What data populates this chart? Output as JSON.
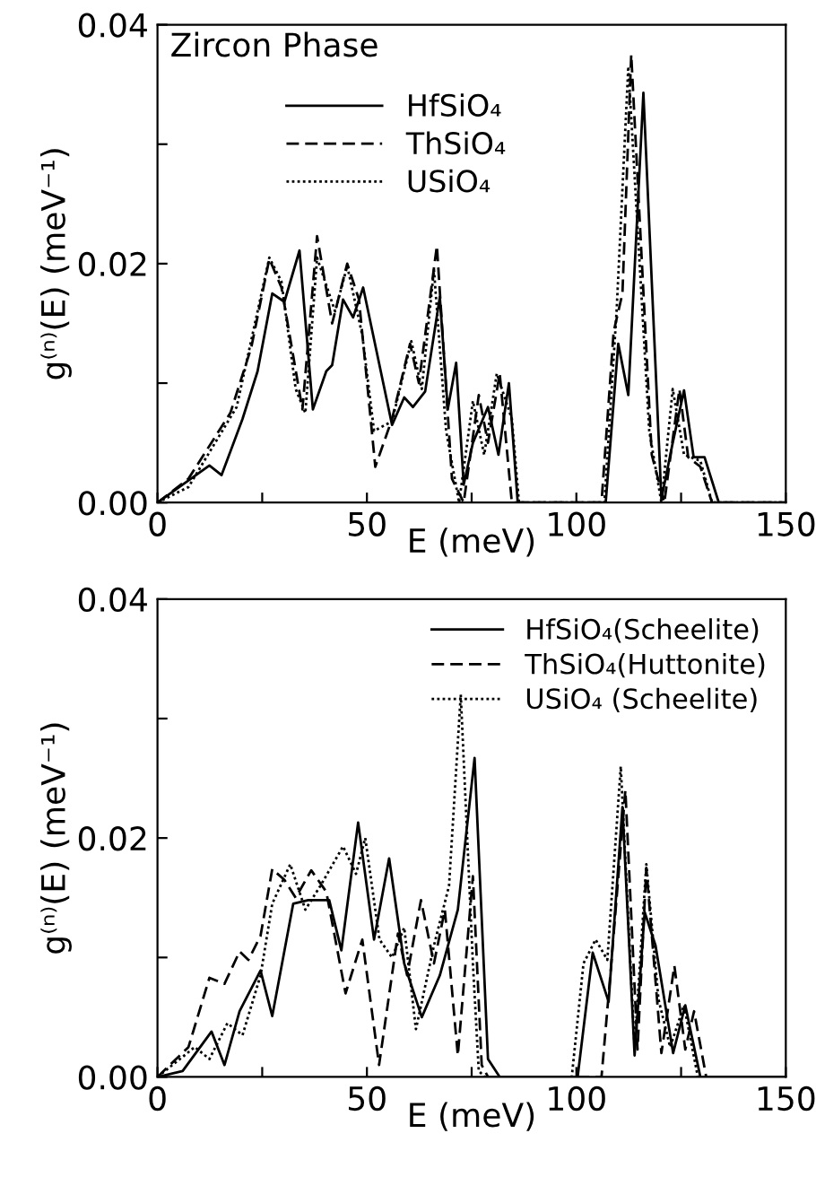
{
  "chart_data": [
    {
      "type": "line",
      "xlabel": "E (meV)",
      "ylabel": "g⁽ⁿ⁾(E) (meV⁻¹)",
      "annotations": [
        "Zircon Phase"
      ],
      "xlim": [
        0,
        150
      ],
      "ylim": [
        0,
        0.04
      ],
      "xticks": [
        0,
        {
          "value": 25,
          "label": null
        },
        50,
        {
          "value": 75,
          "label": null
        },
        100,
        {
          "value": 125,
          "label": null
        },
        150
      ],
      "yticks": [
        {
          "value": 0,
          "label": "0.00"
        },
        {
          "value": 0.01,
          "label": null
        },
        {
          "value": 0.02,
          "label": "0.02"
        },
        {
          "value": 0.03,
          "label": null
        },
        {
          "value": 0.04,
          "label": "0.04"
        }
      ],
      "legend": "top",
      "grid": false,
      "series": [
        {
          "name": "HfSiO₄",
          "color": "#000000",
          "line_style": "solid",
          "x": [
            0,
            12.4,
            15.3,
            20.3,
            23.9,
            27.4,
            30.3,
            33.9,
            37.1,
            40.3,
            41.7,
            44.3,
            46.7,
            49.1,
            56,
            58.9,
            61,
            63.9,
            67.4,
            69.3,
            71.3,
            73.1,
            75.3,
            78.9,
            81.4,
            83.9,
            86,
            107,
            110,
            112.4,
            116,
            120.3,
            123,
            125.7,
            128,
            130.6,
            134,
            150
          ],
          "values": [
            0,
            0.0031,
            0.0023,
            0.007,
            0.011,
            0.0175,
            0.0168,
            0.0211,
            0.0078,
            0.011,
            0.0115,
            0.017,
            0.0155,
            0.018,
            0.0065,
            0.0088,
            0.008,
            0.0093,
            0.0172,
            0.0078,
            0.0117,
            0.0015,
            0.005,
            0.008,
            0.004,
            0.01,
            0,
            0,
            0.0133,
            0.009,
            0.0343,
            0.0003,
            0.005,
            0.0094,
            0.0038,
            0.0038,
            0,
            0
          ]
        },
        {
          "name": "ThSiO₄",
          "color": "#000000",
          "line_style": "dashed",
          "x": [
            0,
            7.4,
            17.4,
            22.4,
            26.7,
            29.6,
            34.6,
            38.1,
            41.7,
            45.3,
            48.1,
            52,
            56,
            60.3,
            62.4,
            66.7,
            70.3,
            73.1,
            76.7,
            78.9,
            81.7,
            84.6,
            106,
            108.9,
            111,
            113.1,
            118,
            121,
            124.6,
            126.7,
            129.6,
            132.4,
            150
          ],
          "values": [
            0,
            0.002,
            0.0075,
            0.013,
            0.0204,
            0.018,
            0.0078,
            0.0223,
            0.015,
            0.02,
            0.017,
            0.003,
            0.007,
            0.0133,
            0.01,
            0.0215,
            0.002,
            0,
            0.009,
            0.005,
            0.0108,
            0,
            0,
            0.0143,
            0.0175,
            0.0375,
            0.004,
            0,
            0.0095,
            0.0038,
            0.003,
            0,
            0
          ]
        },
        {
          "name": "USiO₄",
          "color": "#000000",
          "line_style": "dotted",
          "x": [
            0,
            7.4,
            18.9,
            26.7,
            29.6,
            33,
            35.3,
            38.1,
            42.4,
            45.3,
            48.9,
            51.7,
            56,
            60.6,
            63.1,
            66,
            68.9,
            72,
            75.3,
            78,
            81,
            84.6,
            86.3,
            106.7,
            109.6,
            112.4,
            117.4,
            120.3,
            123,
            125.7,
            129.6,
            132.4,
            150
          ],
          "values": [
            0,
            0.0013,
            0.008,
            0.0205,
            0.0185,
            0.0095,
            0.0075,
            0.0205,
            0.016,
            0.0198,
            0.014,
            0.006,
            0.0068,
            0.0135,
            0.0095,
            0.0195,
            0.006,
            0,
            0.0085,
            0.004,
            0.0108,
            0.007,
            0,
            0,
            0.016,
            0.0365,
            0.006,
            0,
            0.0095,
            0.004,
            0.0035,
            0,
            0
          ]
        }
      ]
    },
    {
      "type": "line",
      "xlabel": "E (meV)",
      "ylabel": "g⁽ⁿ⁾(E) (meV⁻¹)",
      "xlim": [
        0,
        150
      ],
      "ylim": [
        0,
        0.04
      ],
      "xticks": [
        0,
        {
          "value": 25,
          "label": null
        },
        50,
        {
          "value": 75,
          "label": null
        },
        100,
        {
          "value": 125,
          "label": null
        },
        150
      ],
      "yticks": [
        {
          "value": 0,
          "label": "0.00"
        },
        {
          "value": 0.01,
          "label": null
        },
        {
          "value": 0.02,
          "label": "0.02"
        },
        {
          "value": 0.03,
          "label": null
        },
        {
          "value": 0.04,
          "label": "0.04"
        }
      ],
      "legend": "top right",
      "grid": false,
      "series": [
        {
          "name": "HfSiO₄(Scheelite)",
          "color": "#000000",
          "line_style": "solid",
          "x": [
            0,
            6,
            12.9,
            16,
            19.6,
            24.6,
            27.4,
            32.4,
            36,
            41,
            43.9,
            47.9,
            51.7,
            55.3,
            58.9,
            63.1,
            67.4,
            71.7,
            75.7,
            78.9,
            81.7,
            100.3,
            103.9,
            107.7,
            111,
            113.9,
            116.3,
            118.9,
            123.1,
            126,
            129.6,
            150
          ],
          "values": [
            0,
            0.0005,
            0.0038,
            0.001,
            0.0055,
            0.0089,
            0.0051,
            0.0145,
            0.0148,
            0.0148,
            0.0106,
            0.0213,
            0.0115,
            0.0183,
            0.0095,
            0.005,
            0.0085,
            0.014,
            0.0267,
            0.0015,
            0,
            0,
            0.0104,
            0.0063,
            0.0226,
            0.0018,
            0.0138,
            0.011,
            0.002,
            0.006,
            0,
            0
          ]
        },
        {
          "name": "ThSiO₄(Huttonite)",
          "color": "#000000",
          "line_style": "dashed",
          "x": [
            0,
            7.4,
            12.4,
            16,
            19.6,
            21.7,
            24.6,
            27.4,
            30.3,
            33,
            36.7,
            40.3,
            44.9,
            48.9,
            52.9,
            57.4,
            59.6,
            62.9,
            66,
            68.6,
            71.7,
            75.3,
            77.4,
            78.9,
            106,
            108.1,
            111.7,
            114.6,
            116.7,
            120.3,
            123.4,
            126,
            128.1,
            131,
            150
          ],
          "values": [
            0,
            0.0025,
            0.0083,
            0.0078,
            0.0105,
            0.0098,
            0.0118,
            0.0174,
            0.0165,
            0.015,
            0.0173,
            0.0155,
            0.007,
            0.0115,
            0.001,
            0.012,
            0.0085,
            0.0148,
            0.0095,
            0.014,
            0.0018,
            0.0168,
            0.001,
            0,
            0,
            0.0085,
            0.024,
            0.0023,
            0.0175,
            0.002,
            0.0093,
            0.0023,
            0.0055,
            0,
            0
          ]
        },
        {
          "name": "USiO₄ (Scheelite)",
          "color": "#000000",
          "line_style": "dotted",
          "x": [
            0,
            8.9,
            12.4,
            16.7,
            20.3,
            24.6,
            27.4,
            31.7,
            35.3,
            38.9,
            44.3,
            47.4,
            49.6,
            53,
            56,
            58.9,
            61.7,
            66,
            69.6,
            72.4,
            75.3,
            76.7,
            78.1,
            98.9,
            101.7,
            104.6,
            107.4,
            110.6,
            113.9,
            116.7,
            119.6,
            122.4,
            125.7,
            129,
            150
          ],
          "values": [
            0,
            0.0025,
            0.0015,
            0.0045,
            0.0035,
            0.0085,
            0.0145,
            0.0178,
            0.014,
            0.016,
            0.0193,
            0.017,
            0.02,
            0.0115,
            0.01,
            0.0125,
            0.004,
            0.011,
            0.016,
            0.032,
            0.0095,
            0.0005,
            0,
            0,
            0.0095,
            0.0115,
            0.0098,
            0.026,
            0.0025,
            0.0178,
            0.0065,
            0.0025,
            0.006,
            0,
            0
          ]
        }
      ]
    }
  ]
}
